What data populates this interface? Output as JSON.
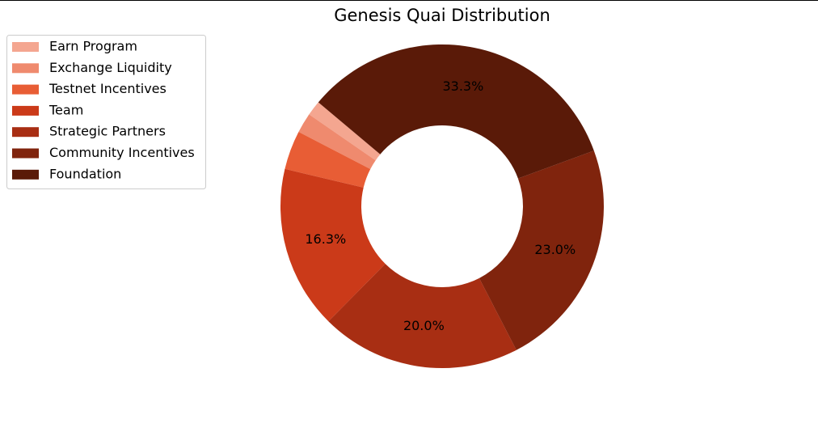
{
  "chart_data": {
    "type": "donut",
    "title": "Genesis Quai Distribution",
    "categories": [
      "Earn Program",
      "Exchange Liquidity",
      "Testnet Incentives",
      "Team",
      "Strategic Partners",
      "Community Incentives",
      "Foundation"
    ],
    "values": [
      1.5,
      2.0,
      3.9,
      16.3,
      20.0,
      23.0,
      33.3
    ],
    "value_labels": [
      null,
      null,
      null,
      "16.3%",
      "20.0%",
      "23.0%",
      "33.3%"
    ],
    "colors": [
      "#f4a690",
      "#ef8a6e",
      "#e85d35",
      "#cb3a19",
      "#a82e13",
      "#80240d",
      "#5a1a08"
    ],
    "start_angle": 140,
    "legend": "upper left"
  }
}
